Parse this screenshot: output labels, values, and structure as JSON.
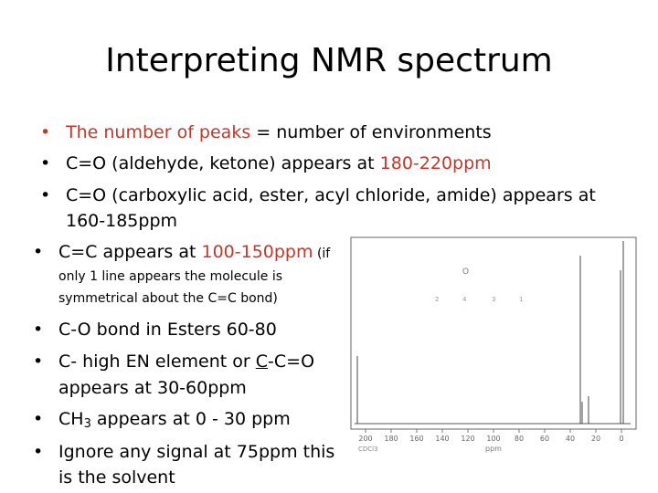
{
  "title": "Interpreting NMR spectrum",
  "bullets": [
    {
      "red_a": "The number of peaks",
      "text_b": " = number of environments"
    },
    {
      "text_a": "C=O (aldehyde, ketone) appears at ",
      "red_b": "180-220ppm"
    },
    {
      "line1": "C=O (carboxylic acid, ester, acyl chloride, amide) appears at",
      "line2": "160-185ppm"
    },
    {
      "text_a": "C=C appears at ",
      "red_b": "100-150ppm",
      "note_a": " (if",
      "note_line2": "only 1 line appears the molecule is",
      "note_line3": "symmetrical about the C=C bond)"
    },
    {
      "text": "C-O bond in Esters 60-80"
    },
    {
      "text_a": "C- high EN element or ",
      "u": "C",
      "text_b": "-C=O",
      "line2": "appears at 30-60ppm"
    },
    {
      "text_a": "CH",
      "sub": "3",
      "text_b": " appears at 0 - 30 ppm"
    },
    {
      "line1": "Ignore any signal at 75ppm this",
      "line2": "is the solvent"
    }
  ],
  "spectrum": {
    "tick_labels": [
      "200",
      "180",
      "160",
      "140",
      "120",
      "100",
      "80",
      "60",
      "40",
      "20",
      "0"
    ],
    "axis_unit": "ppm",
    "left_label": "CDCl3"
  },
  "colors": {
    "accent_red": "#c0392b",
    "text": "#000000"
  }
}
